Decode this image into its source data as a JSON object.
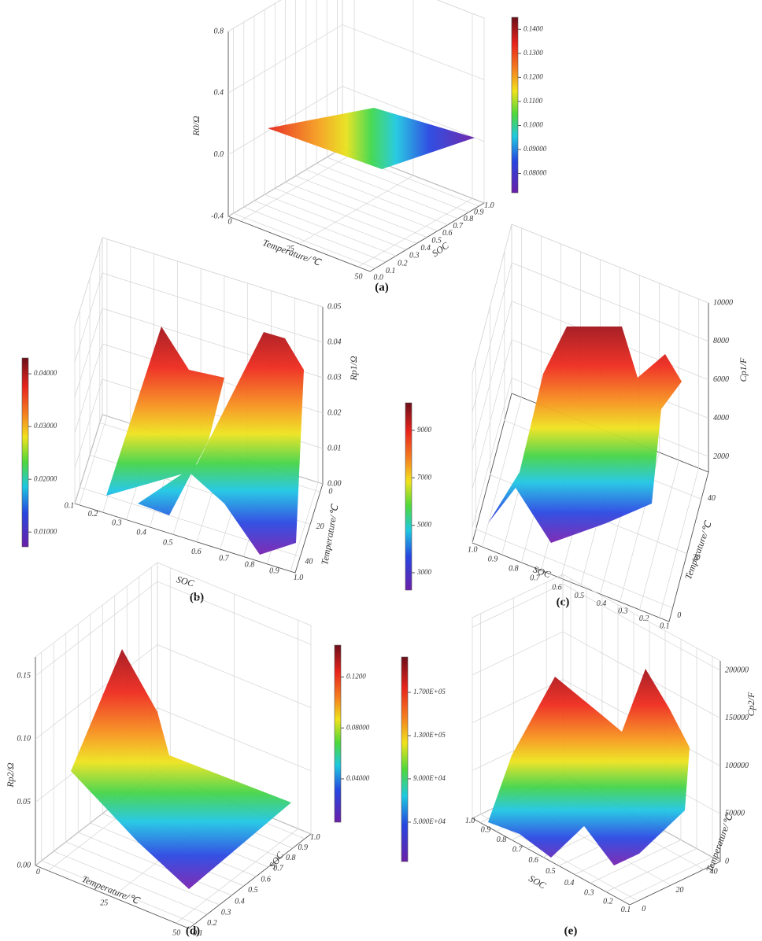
{
  "chart_data": [
    {
      "type": "surface",
      "panel_label": "(a)",
      "x_label": "Temperature/℃",
      "y_label": "SOC",
      "z_label": "R0/Ω",
      "xlim": [
        -5,
        55
      ],
      "xticks": [
        0,
        25,
        50
      ],
      "ylim": [
        -0.05,
        1.05
      ],
      "yticks": [
        {
          "value": 0,
          "label": "0.0"
        },
        0.1,
        0.2,
        0.3,
        0.4,
        0.5,
        0.6,
        0.7,
        0.8,
        0.9,
        {
          "value": 1,
          "label": "1.0"
        }
      ],
      "zlim": [
        -0.4,
        0.8
      ],
      "zticks": [
        -0.4,
        {
          "value": 0,
          "label": "0.0"
        },
        0.4,
        0.8
      ],
      "colorbar_lim": [
        0.072,
        0.145
      ],
      "colorbar_ticks": [
        {
          "value": 0.08,
          "label": "0.08000"
        },
        {
          "value": 0.09,
          "label": "0.09000"
        },
        {
          "value": 0.1,
          "label": "0.1000"
        },
        {
          "value": 0.11,
          "label": "0.1100"
        },
        {
          "value": 0.12,
          "label": "0.1200"
        },
        {
          "value": 0.13,
          "label": "0.1300"
        },
        {
          "value": 0.14,
          "label": "0.1400"
        }
      ]
    },
    {
      "type": "surface",
      "panel_label": "(b)",
      "x_label": "Temperature/℃",
      "y_label": "SOC",
      "z_label": "Rp1/Ω",
      "xlim": [
        -5,
        50
      ],
      "xticks": [
        0,
        20,
        40
      ],
      "ylim": [
        0.08,
        1.02
      ],
      "yticks": [
        0.1,
        0.2,
        0.3,
        0.4,
        0.5,
        0.6,
        0.7,
        0.8,
        0.9,
        {
          "value": 1,
          "label": "1.0"
        }
      ],
      "zlim": [
        0,
        0.05
      ],
      "zticks": [
        {
          "value": 0,
          "label": "0.00"
        },
        0.01,
        0.02,
        0.03,
        0.04,
        0.05
      ],
      "colorbar_lim": [
        0.0072,
        0.043
      ],
      "colorbar_ticks": [
        {
          "value": 0.01,
          "label": "0.01000"
        },
        {
          "value": 0.02,
          "label": "0.02000"
        },
        {
          "value": 0.03,
          "label": "0.03000"
        },
        {
          "value": 0.04,
          "label": "0.04000"
        }
      ]
    },
    {
      "type": "surface",
      "panel_label": "(c)",
      "x_label": "Temperature/℃",
      "y_label": "SOC",
      "z_label": "Cp1/F",
      "xlim": [
        -5,
        50
      ],
      "xticks": [
        0,
        20,
        40
      ],
      "ylim": [
        1.05,
        0.05
      ],
      "yticks": [
        {
          "value": 1,
          "label": "1.0"
        },
        0.9,
        0.8,
        0.7,
        0.6,
        0.5,
        0.4,
        0.3,
        0.2,
        0.1
      ],
      "zlim": [
        1200,
        10000
      ],
      "zticks": [
        2000,
        4000,
        6000,
        8000,
        10000
      ],
      "colorbar_lim": [
        2270,
        10160
      ],
      "colorbar_ticks": [
        3000,
        5000,
        7000,
        9000
      ]
    },
    {
      "type": "surface",
      "panel_label": "(d)",
      "x_label": "Temperature/℃",
      "y_label": "SOC",
      "z_label": "Rp2/Ω",
      "xlim": [
        -5,
        55
      ],
      "xticks": [
        0,
        25,
        50
      ],
      "ylim": [
        0.05,
        1.05
      ],
      "yticks": [
        0.1,
        0.2,
        0.3,
        0.4,
        0.5,
        0.6,
        0.7,
        0.8,
        0.9,
        {
          "value": 1,
          "label": "1.0"
        }
      ],
      "zlim": [
        0,
        0.165
      ],
      "zticks": [
        {
          "value": 0,
          "label": "0.00"
        },
        0.05,
        {
          "value": 0.1,
          "label": "0.10"
        },
        0.15
      ],
      "colorbar_lim": [
        0.006,
        0.145
      ],
      "colorbar_ticks": [
        {
          "value": 0.04,
          "label": "0.04000"
        },
        {
          "value": 0.08,
          "label": "0.08000"
        },
        {
          "value": 0.12,
          "label": "0.1200"
        }
      ]
    },
    {
      "type": "surface",
      "panel_label": "(e)",
      "x_label": "Temperature/℃",
      "y_label": "SOC",
      "z_label": "Cp2/F",
      "xlim": [
        -5,
        50
      ],
      "xticks": [
        0,
        20,
        40
      ],
      "ylim": [
        1.05,
        0.05
      ],
      "yticks": [
        {
          "value": 1,
          "label": "1.0"
        },
        0.9,
        0.8,
        0.7,
        0.6,
        0.5,
        0.4,
        0.3,
        0.2,
        0.1
      ],
      "zlim": [
        0,
        210000
      ],
      "zticks": [
        0,
        50000,
        100000,
        150000,
        200000
      ],
      "colorbar_lim": [
        13600,
        202700
      ],
      "colorbar_ticks": [
        {
          "value": 50000,
          "label": "5.000E+04"
        },
        {
          "value": 90000,
          "label": "9.000E+04"
        },
        {
          "value": 130000,
          "label": "1.300E+05"
        },
        {
          "value": 170000,
          "label": "1.700E+05"
        }
      ]
    }
  ]
}
